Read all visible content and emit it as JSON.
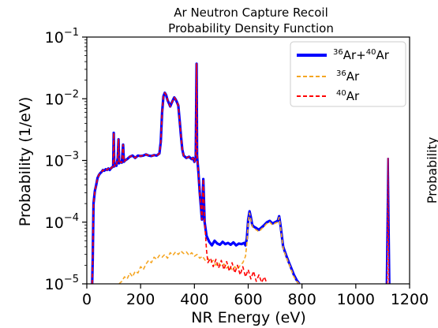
{
  "chart_data": {
    "type": "line",
    "title_lines": [
      "Ar Neutron Capture Recoil",
      "Probability Density Function"
    ],
    "xlabel": "NR Energy (eV)",
    "ylabel": "Probability (1/eV)",
    "xlim": [
      0,
      1200
    ],
    "yscale": "log",
    "ylim": [
      1e-05,
      0.1
    ],
    "x_ticks": [
      0,
      200,
      400,
      600,
      800,
      1000,
      1200
    ],
    "x_tick_labels": [
      "0",
      "200",
      "400",
      "600",
      "800",
      "1000",
      "1200"
    ],
    "y_ticks": [
      1e-05,
      0.0001,
      0.001,
      0.01,
      0.1
    ],
    "y_tick_labels": [
      {
        "base": "10",
        "exp": "−5"
      },
      {
        "base": "10",
        "exp": "−4"
      },
      {
        "base": "10",
        "exp": "−3"
      },
      {
        "base": "10",
        "exp": "−2"
      },
      {
        "base": "10",
        "exp": "−1"
      }
    ],
    "legend_position": "top-right",
    "grid": false,
    "right_panel_label": "Probability",
    "series": [
      {
        "legend": {
          "superscript_a": "36",
          "text_a": "Ar+",
          "superscript_b": "40",
          "text_b": "Ar"
        },
        "color": "#0000ff",
        "style": "solid",
        "points": [
          [
            20,
            1e-05
          ],
          [
            22,
            2.5e-05
          ],
          [
            25,
            0.0002
          ],
          [
            30,
            0.00032
          ],
          [
            35,
            0.0004
          ],
          [
            40,
            0.00052
          ],
          [
            45,
            0.00058
          ],
          [
            50,
            0.00062
          ],
          [
            55,
            0.00065
          ],
          [
            60,
            0.0007
          ],
          [
            65,
            0.00068
          ],
          [
            70,
            0.00072
          ],
          [
            75,
            0.0007
          ],
          [
            80,
            0.00074
          ],
          [
            85,
            0.0007
          ],
          [
            90,
            0.00075
          ],
          [
            95,
            0.00078
          ],
          [
            98,
            0.0008
          ],
          [
            100,
            0.0028
          ],
          [
            102,
            0.0008
          ],
          [
            105,
            0.00085
          ],
          [
            110,
            0.00082
          ],
          [
            115,
            0.0011
          ],
          [
            118,
            0.0022
          ],
          [
            120,
            0.0009
          ],
          [
            125,
            0.00095
          ],
          [
            130,
            0.00092
          ],
          [
            135,
            0.0018
          ],
          [
            138,
            0.00095
          ],
          [
            142,
            0.001
          ],
          [
            150,
            0.00105
          ],
          [
            160,
            0.00115
          ],
          [
            170,
            0.0012
          ],
          [
            180,
            0.0011
          ],
          [
            190,
            0.0012
          ],
          [
            200,
            0.00118
          ],
          [
            210,
            0.0012
          ],
          [
            220,
            0.00125
          ],
          [
            230,
            0.0012
          ],
          [
            240,
            0.00118
          ],
          [
            250,
            0.00122
          ],
          [
            260,
            0.0012
          ],
          [
            270,
            0.0013
          ],
          [
            275,
            0.002
          ],
          [
            280,
            0.006
          ],
          [
            285,
            0.011
          ],
          [
            290,
            0.0125
          ],
          [
            295,
            0.0115
          ],
          [
            300,
            0.0095
          ],
          [
            305,
            0.0085
          ],
          [
            310,
            0.0075
          ],
          [
            315,
            0.0085
          ],
          [
            320,
            0.0095
          ],
          [
            325,
            0.0105
          ],
          [
            330,
            0.0098
          ],
          [
            335,
            0.0088
          ],
          [
            340,
            0.0078
          ],
          [
            345,
            0.0045
          ],
          [
            350,
            0.0025
          ],
          [
            355,
            0.0015
          ],
          [
            360,
            0.0012
          ],
          [
            370,
            0.0011
          ],
          [
            380,
            0.00115
          ],
          [
            390,
            0.00105
          ],
          [
            395,
            0.0011
          ],
          [
            400,
            0.00095
          ],
          [
            405,
            0.0011
          ],
          [
            408,
            0.037
          ],
          [
            410,
            0.0012
          ],
          [
            415,
            0.00065
          ],
          [
            420,
            0.0003
          ],
          [
            428,
            0.00011
          ],
          [
            433,
            0.0005
          ],
          [
            438,
            0.0001
          ],
          [
            445,
            6e-05
          ],
          [
            455,
            4.8e-05
          ],
          [
            465,
            4.2e-05
          ],
          [
            475,
            5e-05
          ],
          [
            485,
            4.5e-05
          ],
          [
            495,
            4.3e-05
          ],
          [
            505,
            4.8e-05
          ],
          [
            515,
            4.4e-05
          ],
          [
            525,
            4.6e-05
          ],
          [
            535,
            4.3e-05
          ],
          [
            545,
            4.7e-05
          ],
          [
            555,
            4.2e-05
          ],
          [
            565,
            4.5e-05
          ],
          [
            575,
            4.4e-05
          ],
          [
            585,
            4.6e-05
          ],
          [
            590,
            4.2e-05
          ],
          [
            595,
            5.5e-05
          ],
          [
            600,
            0.00011
          ],
          [
            605,
            0.00015
          ],
          [
            610,
            0.00012
          ],
          [
            615,
            9e-05
          ],
          [
            620,
            8.5e-05
          ],
          [
            630,
            8e-05
          ],
          [
            640,
            7.5e-05
          ],
          [
            650,
            8.2e-05
          ],
          [
            660,
            9e-05
          ],
          [
            670,
            0.0001
          ],
          [
            680,
            0.000105
          ],
          [
            690,
            9.5e-05
          ],
          [
            700,
            0.0001
          ],
          [
            710,
            0.000105
          ],
          [
            715,
            0.000125
          ],
          [
            720,
            9e-05
          ],
          [
            725,
            6e-05
          ],
          [
            730,
            4e-05
          ],
          [
            740,
            3e-05
          ],
          [
            750,
            2.3e-05
          ],
          [
            760,
            1.8e-05
          ],
          [
            770,
            1.4e-05
          ],
          [
            780,
            1.15e-05
          ],
          [
            790,
            1e-05
          ]
        ]
      },
      {
        "legend": {
          "superscript": "36",
          "text": "Ar"
        },
        "color": "#f5a623",
        "style": "dashed",
        "points": [
          [
            120,
            1e-05
          ],
          [
            130,
            1.1e-05
          ],
          [
            140,
            1.3e-05
          ],
          [
            150,
            1.2e-05
          ],
          [
            160,
            1.5e-05
          ],
          [
            170,
            1.3e-05
          ],
          [
            180,
            1.6e-05
          ],
          [
            190,
            1.5e-05
          ],
          [
            200,
            1.9e-05
          ],
          [
            210,
            1.7e-05
          ],
          [
            220,
            2.1e-05
          ],
          [
            230,
            2.4e-05
          ],
          [
            240,
            2.2e-05
          ],
          [
            250,
            2.7e-05
          ],
          [
            260,
            2.5e-05
          ],
          [
            270,
            2.9e-05
          ],
          [
            280,
            2.7e-05
          ],
          [
            290,
            3e-05
          ],
          [
            300,
            2.6e-05
          ],
          [
            310,
            3.2e-05
          ],
          [
            320,
            2.9e-05
          ],
          [
            330,
            3.3e-05
          ],
          [
            340,
            3e-05
          ],
          [
            350,
            3.4e-05
          ],
          [
            360,
            3.1e-05
          ],
          [
            370,
            3.3e-05
          ],
          [
            380,
            2.9e-05
          ],
          [
            390,
            3.2e-05
          ],
          [
            400,
            2.8e-05
          ],
          [
            410,
            3e-05
          ],
          [
            420,
            2.6e-05
          ],
          [
            430,
            2.8e-05
          ],
          [
            440,
            2.4e-05
          ],
          [
            450,
            2.6e-05
          ],
          [
            460,
            2.2e-05
          ],
          [
            470,
            2.4e-05
          ],
          [
            480,
            2e-05
          ],
          [
            490,
            2.2e-05
          ],
          [
            500,
            1.9e-05
          ],
          [
            510,
            2.1e-05
          ],
          [
            520,
            1.8e-05
          ],
          [
            530,
            2e-05
          ],
          [
            540,
            1.7e-05
          ],
          [
            550,
            1.9e-05
          ],
          [
            560,
            1.7e-05
          ],
          [
            570,
            2e-05
          ],
          [
            580,
            2.2e-05
          ],
          [
            590,
            2.8e-05
          ],
          [
            595,
            4.5e-05
          ],
          [
            600,
            0.0001
          ],
          [
            605,
            0.00014
          ],
          [
            610,
            0.00011
          ],
          [
            615,
            8.5e-05
          ],
          [
            620,
            8e-05
          ],
          [
            630,
            7.5e-05
          ],
          [
            640,
            7e-05
          ],
          [
            650,
            7.8e-05
          ],
          [
            660,
            8.6e-05
          ],
          [
            670,
            9.6e-05
          ],
          [
            680,
            0.0001
          ],
          [
            690,
            9e-05
          ],
          [
            700,
            9.6e-05
          ],
          [
            710,
            0.0001
          ],
          [
            715,
            0.00012
          ],
          [
            720,
            8.5e-05
          ],
          [
            725,
            5.6e-05
          ],
          [
            730,
            3.8e-05
          ],
          [
            740,
            2.8e-05
          ],
          [
            750,
            2.2e-05
          ],
          [
            760,
            1.7e-05
          ],
          [
            770,
            1.3e-05
          ],
          [
            780,
            1.1e-05
          ],
          [
            790,
            1e-05
          ]
        ]
      },
      {
        "legend": {
          "superscript": "40",
          "text": "Ar"
        },
        "color": "#ff0000",
        "style": "dashed",
        "points": [
          [
            20,
            1e-05
          ],
          [
            22,
            2.5e-05
          ],
          [
            25,
            0.0002
          ],
          [
            30,
            0.00032
          ],
          [
            35,
            0.0004
          ],
          [
            40,
            0.00052
          ],
          [
            45,
            0.00058
          ],
          [
            50,
            0.00062
          ],
          [
            55,
            0.00065
          ],
          [
            60,
            0.0007
          ],
          [
            65,
            0.00068
          ],
          [
            70,
            0.00072
          ],
          [
            75,
            0.0007
          ],
          [
            80,
            0.00074
          ],
          [
            85,
            0.0007
          ],
          [
            90,
            0.00075
          ],
          [
            95,
            0.00078
          ],
          [
            98,
            0.0008
          ],
          [
            100,
            0.0028
          ],
          [
            102,
            0.0008
          ],
          [
            105,
            0.00085
          ],
          [
            110,
            0.00082
          ],
          [
            115,
            0.0011
          ],
          [
            118,
            0.0022
          ],
          [
            120,
            0.0009
          ],
          [
            125,
            0.00095
          ],
          [
            130,
            0.00092
          ],
          [
            135,
            0.0018
          ],
          [
            138,
            0.00095
          ],
          [
            142,
            0.001
          ],
          [
            150,
            0.00105
          ],
          [
            160,
            0.00115
          ],
          [
            170,
            0.0012
          ],
          [
            180,
            0.0011
          ],
          [
            190,
            0.0012
          ],
          [
            200,
            0.00118
          ],
          [
            210,
            0.0012
          ],
          [
            220,
            0.00125
          ],
          [
            230,
            0.0012
          ],
          [
            240,
            0.00118
          ],
          [
            250,
            0.00122
          ],
          [
            260,
            0.0012
          ],
          [
            270,
            0.0013
          ],
          [
            275,
            0.002
          ],
          [
            280,
            0.006
          ],
          [
            285,
            0.011
          ],
          [
            290,
            0.0125
          ],
          [
            295,
            0.0115
          ],
          [
            300,
            0.0095
          ],
          [
            305,
            0.0085
          ],
          [
            310,
            0.0075
          ],
          [
            315,
            0.0085
          ],
          [
            320,
            0.0095
          ],
          [
            325,
            0.0105
          ],
          [
            330,
            0.0098
          ],
          [
            335,
            0.0088
          ],
          [
            340,
            0.0078
          ],
          [
            345,
            0.0045
          ],
          [
            350,
            0.0025
          ],
          [
            355,
            0.0015
          ],
          [
            360,
            0.0012
          ],
          [
            370,
            0.0011
          ],
          [
            380,
            0.00115
          ],
          [
            390,
            0.00105
          ],
          [
            395,
            0.0011
          ],
          [
            400,
            0.00095
          ],
          [
            405,
            0.0011
          ],
          [
            408,
            0.037
          ],
          [
            410,
            0.0012
          ],
          [
            415,
            0.00065
          ],
          [
            420,
            0.0003
          ],
          [
            428,
            0.00011
          ],
          [
            433,
            0.0005
          ],
          [
            438,
            0.0001
          ],
          [
            445,
            3.5e-05
          ],
          [
            450,
            2.2e-05
          ],
          [
            460,
            2.6e-05
          ],
          [
            470,
            1.9e-05
          ],
          [
            480,
            2.5e-05
          ],
          [
            490,
            1.8e-05
          ],
          [
            500,
            2.4e-05
          ],
          [
            510,
            1.7e-05
          ],
          [
            520,
            2.3e-05
          ],
          [
            530,
            1.6e-05
          ],
          [
            540,
            2.2e-05
          ],
          [
            550,
            1.5e-05
          ],
          [
            560,
            2e-05
          ],
          [
            570,
            1.4e-05
          ],
          [
            580,
            1.9e-05
          ],
          [
            590,
            1.3e-05
          ],
          [
            600,
            1.7e-05
          ],
          [
            610,
            1.2e-05
          ],
          [
            620,
            1.6e-05
          ],
          [
            630,
            1.1e-05
          ],
          [
            640,
            1.4e-05
          ],
          [
            650,
            1.05e-05
          ],
          [
            660,
            1.3e-05
          ],
          [
            670,
            1e-05
          ]
        ]
      }
    ],
    "isolated_peak": {
      "x": 1120,
      "y": 0.0011
    }
  }
}
